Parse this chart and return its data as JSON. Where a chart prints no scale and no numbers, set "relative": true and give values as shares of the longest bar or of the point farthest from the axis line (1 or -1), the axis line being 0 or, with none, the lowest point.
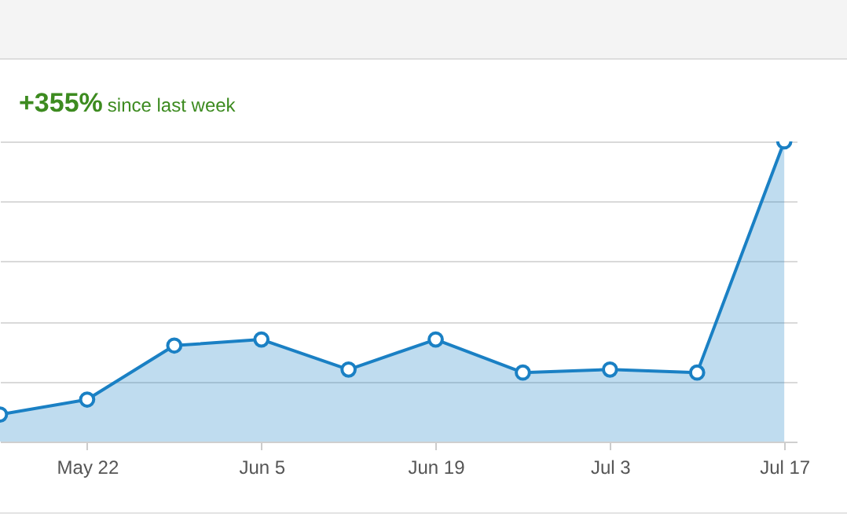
{
  "chart_data": {
    "type": "area",
    "title": "+355%",
    "subtitle": "since last week",
    "relative": true,
    "x": [
      "--05-15",
      "--05-22",
      "--05-29",
      "--06-05",
      "--06-12",
      "--06-19",
      "--06-26",
      "--07-03",
      "--07-10",
      "--07-17"
    ],
    "series": [
      {
        "color": "#1a80c4",
        "values": [
          0.09,
          0.14,
          0.32,
          0.34,
          0.24,
          0.34,
          0.23,
          0.24,
          0.23,
          1
        ]
      }
    ],
    "xlim": [
      "--05-15",
      "--07-18"
    ],
    "xticks": [
      {
        "value": "--05-22",
        "label": "May 22"
      },
      {
        "value": "--06-05",
        "label": "Jun 5"
      },
      {
        "value": "--06-19",
        "label": "Jun 19"
      },
      {
        "value": "--07-03",
        "label": "Jul 3"
      },
      {
        "value": "--07-17",
        "label": "Jul 17"
      }
    ],
    "grid": "y",
    "marker": "circle",
    "line_style": "solid"
  }
}
